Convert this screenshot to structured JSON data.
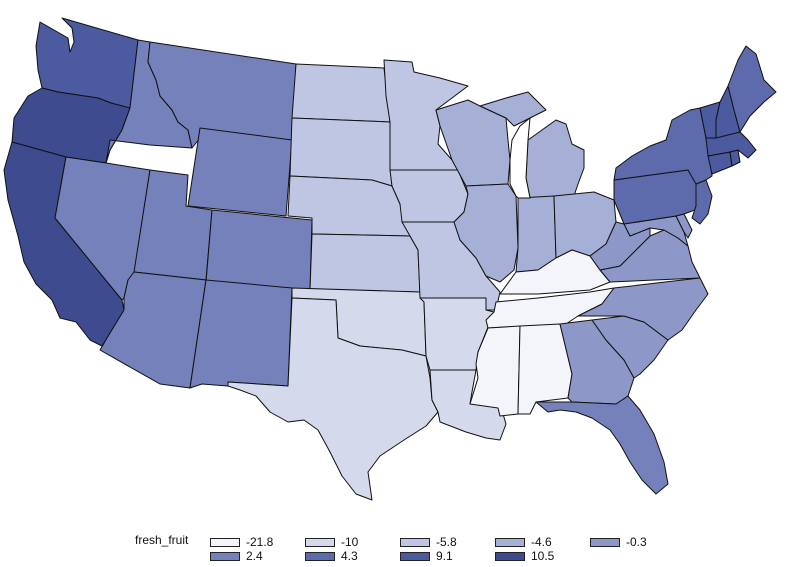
{
  "map": {
    "variable": "fresh_fruit",
    "legend_title": "fresh_fruit",
    "classes": [
      {
        "label": "-21.8",
        "color": "#f4f5fb"
      },
      {
        "label": "-10",
        "color": "#d5d9ec"
      },
      {
        "label": "-5.8",
        "color": "#bfc6e3"
      },
      {
        "label": "-4.6",
        "color": "#a6afd6"
      },
      {
        "label": "-0.3",
        "color": "#8d98c9"
      },
      {
        "label": "2.4",
        "color": "#7581bb"
      },
      {
        "label": "4.3",
        "color": "#5d6aab"
      },
      {
        "label": "9.1",
        "color": "#4c5a9f"
      },
      {
        "label": "10.5",
        "color": "#3e4b8f"
      }
    ],
    "regions": [
      {
        "name": "Washington",
        "class": 7
      },
      {
        "name": "Oregon",
        "class": 8
      },
      {
        "name": "California",
        "class": 8
      },
      {
        "name": "Idaho",
        "class": 5
      },
      {
        "name": "Nevada",
        "class": 5
      },
      {
        "name": "Montana",
        "class": 5
      },
      {
        "name": "Wyoming",
        "class": 5
      },
      {
        "name": "Utah",
        "class": 5
      },
      {
        "name": "Arizona",
        "class": 5
      },
      {
        "name": "Colorado",
        "class": 5
      },
      {
        "name": "New Mexico",
        "class": 5
      },
      {
        "name": "North Dakota",
        "class": 2
      },
      {
        "name": "South Dakota",
        "class": 2
      },
      {
        "name": "Nebraska",
        "class": 2
      },
      {
        "name": "Kansas",
        "class": 2
      },
      {
        "name": "Oklahoma",
        "class": 1
      },
      {
        "name": "Texas",
        "class": 1
      },
      {
        "name": "Minnesota",
        "class": 2
      },
      {
        "name": "Iowa",
        "class": 2
      },
      {
        "name": "Missouri",
        "class": 2
      },
      {
        "name": "Arkansas",
        "class": 1
      },
      {
        "name": "Louisiana",
        "class": 1
      },
      {
        "name": "Wisconsin",
        "class": 3
      },
      {
        "name": "Illinois",
        "class": 3
      },
      {
        "name": "Michigan",
        "class": 3
      },
      {
        "name": "Indiana",
        "class": 3
      },
      {
        "name": "Ohio",
        "class": 3
      },
      {
        "name": "Kentucky",
        "class": 0
      },
      {
        "name": "Tennessee",
        "class": 0
      },
      {
        "name": "Mississippi",
        "class": 0
      },
      {
        "name": "Alabama",
        "class": 0
      },
      {
        "name": "Georgia",
        "class": 4
      },
      {
        "name": "Florida",
        "class": 5
      },
      {
        "name": "South Carolina",
        "class": 4
      },
      {
        "name": "North Carolina",
        "class": 4
      },
      {
        "name": "Virginia",
        "class": 4
      },
      {
        "name": "West Virginia",
        "class": 4
      },
      {
        "name": "Maryland",
        "class": 4
      },
      {
        "name": "Delaware",
        "class": 4
      },
      {
        "name": "Pennsylvania",
        "class": 6
      },
      {
        "name": "New Jersey",
        "class": 6
      },
      {
        "name": "New York",
        "class": 6
      },
      {
        "name": "Connecticut",
        "class": 7
      },
      {
        "name": "Rhode Island",
        "class": 7
      },
      {
        "name": "Massachusetts",
        "class": 7
      },
      {
        "name": "Vermont",
        "class": 7
      },
      {
        "name": "New Hampshire",
        "class": 7
      },
      {
        "name": "Maine",
        "class": 6
      }
    ]
  }
}
